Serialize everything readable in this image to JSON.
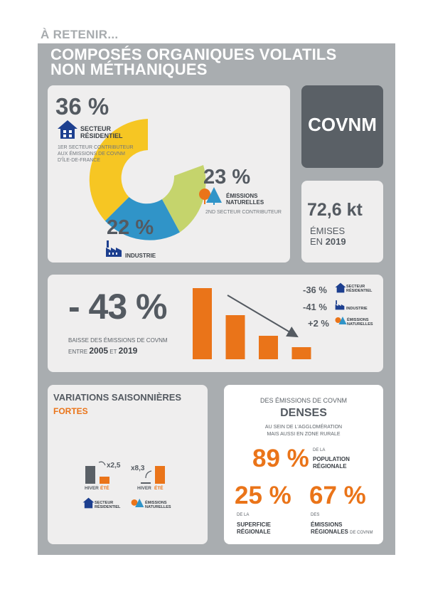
{
  "header": {
    "kicker": "À RETENIR...",
    "title_line1": "COMPOSÉS ORGANIQUES VOLATILS",
    "title_line2": "NON MÉTHANIQUES"
  },
  "donut": {
    "residentiel_pct": "36 %",
    "residentiel_label_1": "SECTEUR",
    "residentiel_label_2": "RÉSIDENTIEL",
    "residentiel_note_1": "1ER SECTEUR CONTRIBUTEUR",
    "residentiel_note_2": "AUX ÉMISSIONS DE COVNM",
    "residentiel_note_3": "D'ÎLE-DE-FRANCE",
    "naturelles_pct": "23 %",
    "naturelles_label_1": "ÉMISSIONS",
    "naturelles_label_2": "NATURELLES",
    "naturelles_note": "2ND SECTEUR CONTRIBUTEUR",
    "industrie_pct": "22 %",
    "industrie_label": "INDUSTRIE",
    "segments": [
      {
        "name": "Secteur résidentiel",
        "value": 36,
        "color": "#f6c623"
      },
      {
        "name": "Émissions naturelles",
        "value": 23,
        "color": "#c5d46c"
      },
      {
        "name": "Industrie",
        "value": 22,
        "color": "#3094c8"
      }
    ]
  },
  "covnm_box": {
    "label": "COVNM"
  },
  "emissions_box": {
    "value": "72,6 kt",
    "label_1": "ÉMISES",
    "label_2_prefix": "EN",
    "year": "2019"
  },
  "trend": {
    "big_value": "- 43 %",
    "caption_1": "BAISSE DES ÉMISSIONS DE COVNM",
    "caption_2_prefix": "ENTRE",
    "year_start": "2005",
    "caption_2_mid": "ET",
    "year_end": "2019",
    "bars": [
      1.0,
      0.62,
      0.33,
      0.17
    ],
    "items": [
      {
        "value": "-36 %",
        "label_1": "SECTEUR",
        "label_2": "RÉSIDENTIEL"
      },
      {
        "value": "-41 %",
        "label_1": "INDUSTRIE",
        "label_2": ""
      },
      {
        "value": "+2 %",
        "label_1": "ÉMISSIONS",
        "label_2": "NATURELLES"
      }
    ]
  },
  "seasonal": {
    "title": "VARIATIONS SAISONNIÈRES",
    "subtitle": "FORTES",
    "residentiel_factor": "x2,5",
    "naturelles_factor": "x8,3",
    "hiver": "HIVER",
    "ete": "ÉTÉ",
    "residentiel_label_1": "SECTEUR",
    "residentiel_label_2": "RÉSIDENTIEL",
    "naturelles_label_1": "ÉMISSIONS",
    "naturelles_label_2": "NATURELLES"
  },
  "dense": {
    "line1": "DES ÉMISSIONS DE COVNM",
    "headline": "DENSES",
    "line3": "AU SEIN DE L'AGGLOMÉRATION",
    "line4": "MAIS AUSSI EN ZONE RURALE",
    "pop_value": "89 %",
    "pop_label_1": "DE LA",
    "pop_label_2": "POPULATION",
    "pop_label_3": "RÉGIONALE",
    "surf_value": "25 %",
    "surf_label_1": "DE LA",
    "surf_label_2": "SUPERFICIE",
    "surf_label_3": "RÉGIONALE",
    "emis_value": "67 %",
    "emis_label_1": "DES",
    "emis_label_2": "ÉMISSIONS",
    "emis_label_3": "RÉGIONALES",
    "emis_label_4": "DE COVNM"
  },
  "colors": {
    "orange": "#ea7419",
    "dark_gray": "#545a61",
    "panel_gray": "#a9adb0",
    "blue_icon": "#1d3f8f",
    "yellow": "#f6c623",
    "green": "#c5d46c",
    "blue": "#3094c8"
  }
}
